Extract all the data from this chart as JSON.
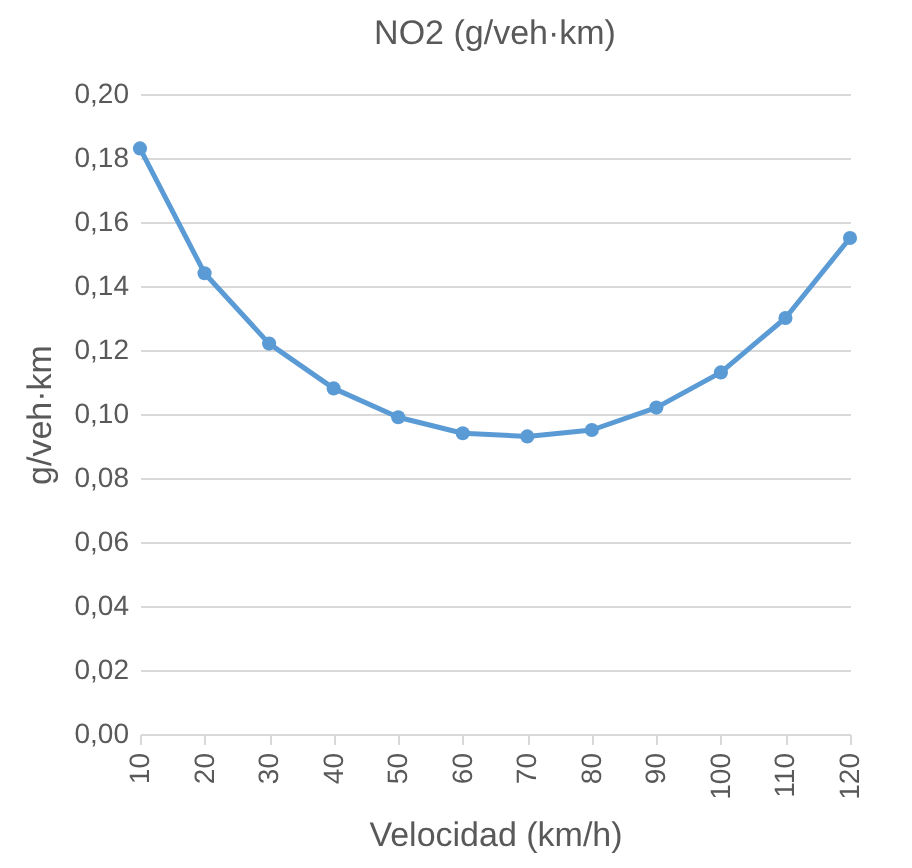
{
  "chart_data": {
    "type": "line",
    "title": "NO2 (g/veh·km)",
    "xlabel": "Velocidad (km/h)",
    "ylabel": "g/veh·km",
    "x": [
      10,
      20,
      30,
      40,
      50,
      60,
      70,
      80,
      90,
      100,
      110,
      120
    ],
    "series": [
      {
        "color": "#5b9bd5",
        "values": [
          0.183,
          0.144,
          0.122,
          0.108,
          0.099,
          0.094,
          0.093,
          0.095,
          0.102,
          0.113,
          0.13,
          0.155
        ]
      }
    ],
    "xlim": [
      10,
      120
    ],
    "xticks": [
      10,
      20,
      30,
      40,
      50,
      60,
      70,
      80,
      90,
      100,
      110,
      120
    ],
    "ylim": [
      0,
      0.2
    ],
    "yticks": [
      {
        "value": 0,
        "label": "0,00"
      },
      {
        "value": 0.02,
        "label": "0,02"
      },
      {
        "value": 0.04,
        "label": "0,04"
      },
      {
        "value": 0.06,
        "label": "0,06"
      },
      {
        "value": 0.08,
        "label": "0,08"
      },
      {
        "value": 0.1,
        "label": "0,10"
      },
      {
        "value": 0.12,
        "label": "0,12"
      },
      {
        "value": 0.14,
        "label": "0,14"
      },
      {
        "value": 0.16,
        "label": "0,16"
      },
      {
        "value": 0.18,
        "label": "0,18"
      },
      {
        "value": 0.2,
        "label": "0,20"
      }
    ],
    "grid": "y",
    "marker": "circle",
    "line_style": "solid"
  }
}
